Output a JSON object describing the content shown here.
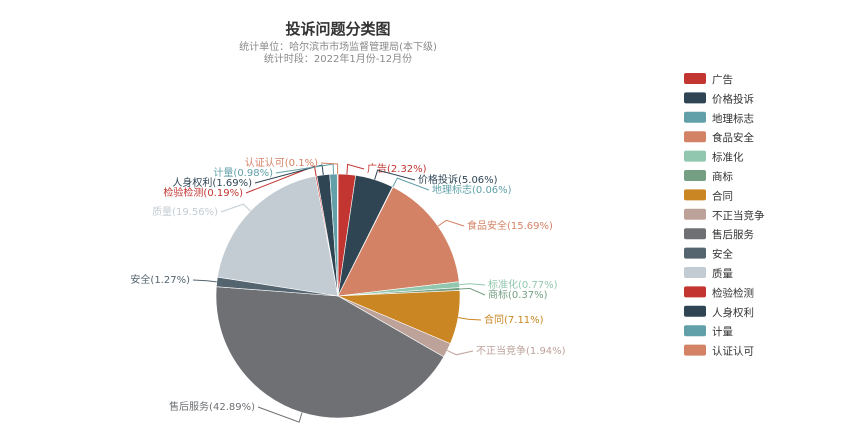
{
  "chart_data": {
    "type": "pie",
    "title": "投诉问题分类图",
    "subtitle_lines": [
      "统计单位：哈尔滨市市场监督管理局(本下级)",
      "统计时段：2022年1月份-12月份"
    ],
    "legend_position": "right",
    "slices": [
      {
        "name": "广告",
        "value": 2.32,
        "label": "广告(2.32%)",
        "color": "#c23531"
      },
      {
        "name": "价格投诉",
        "value": 5.06,
        "label": "价格投诉(5.06%)",
        "color": "#2f4554"
      },
      {
        "name": "地理标志",
        "value": 0.06,
        "label": "地理标志(0.06%)",
        "color": "#61a0a8"
      },
      {
        "name": "食品安全",
        "value": 15.69,
        "label": "食品安全(15.69%)",
        "color": "#d48265"
      },
      {
        "name": "标准化",
        "value": 0.77,
        "label": "标准化(0.77%)",
        "color": "#91c7ae"
      },
      {
        "name": "商标",
        "value": 0.37,
        "label": "商标(0.37%)",
        "color": "#749f83"
      },
      {
        "name": "合同",
        "value": 7.11,
        "label": "合同(7.11%)",
        "color": "#ca8622"
      },
      {
        "name": "不正当竞争",
        "value": 1.94,
        "label": "不正当竞争(1.94%)",
        "color": "#bda29a"
      },
      {
        "name": "售后服务",
        "value": 42.89,
        "label": "售后服务(42.89%)",
        "color": "#6e7074"
      },
      {
        "name": "安全",
        "value": 1.27,
        "label": "安全(1.27%)",
        "color": "#546570"
      },
      {
        "name": "质量",
        "value": 19.56,
        "label": "质量(19.56%)",
        "color": "#c4ccd3"
      },
      {
        "name": "检验检测",
        "value": 0.19,
        "label": "检验检测(0.19%)",
        "color": "#c23531"
      },
      {
        "name": "人身权利",
        "value": 1.69,
        "label": "人身权利(1.69%)",
        "color": "#2f4554"
      },
      {
        "name": "计量",
        "value": 0.98,
        "label": "计量(0.98%)",
        "color": "#61a0a8"
      },
      {
        "name": "认证认可",
        "value": 0.1,
        "label": "认证认可(0.1%)",
        "color": "#d48265"
      }
    ]
  }
}
